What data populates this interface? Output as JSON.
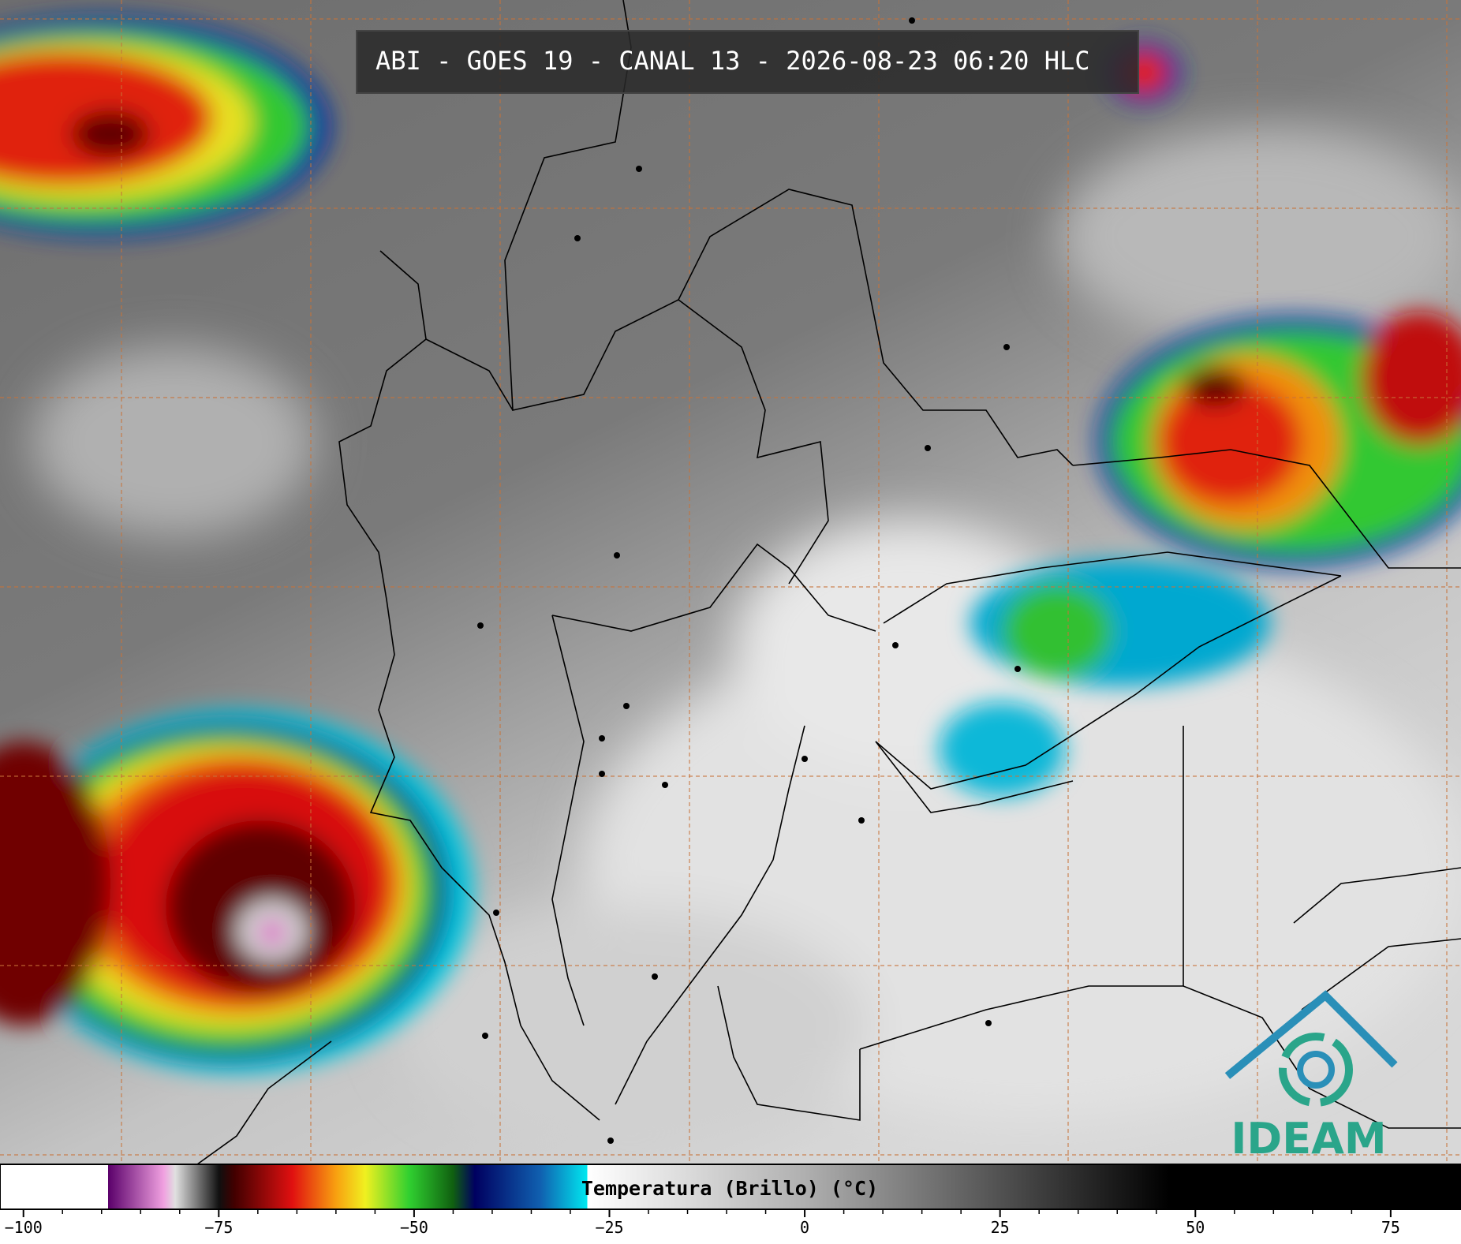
{
  "title": "ABI - GOES 19 - CANAL 13 - 2026-08-23 06:20 HLC",
  "colorbar": {
    "label": "Temperatura (Brillo) (°C)",
    "lim": [
      -103,
      84
    ],
    "ticks": [
      {
        "value": -100,
        "label": "−100"
      },
      {
        "value": -75,
        "label": "−75"
      },
      {
        "value": -50,
        "label": "−50"
      },
      {
        "value": -25,
        "label": "−25"
      },
      0,
      25,
      50,
      75
    ]
  },
  "logo": {
    "text": "IDEAM"
  }
}
